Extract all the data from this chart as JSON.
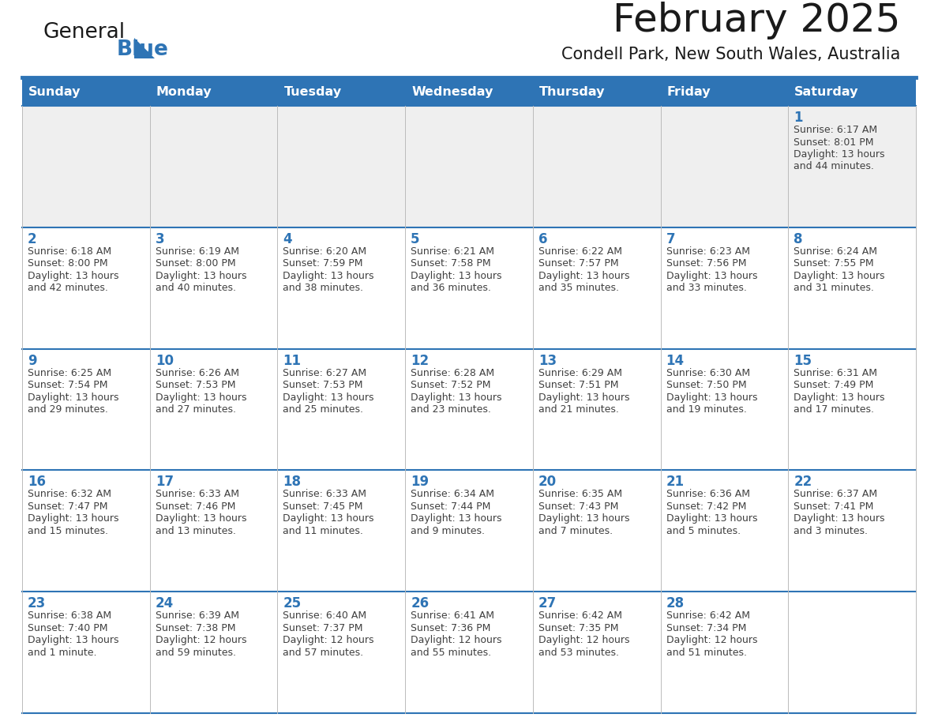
{
  "title": "February 2025",
  "subtitle": "Condell Park, New South Wales, Australia",
  "days_of_week": [
    "Sunday",
    "Monday",
    "Tuesday",
    "Wednesday",
    "Thursday",
    "Friday",
    "Saturday"
  ],
  "header_bg": "#2E74B5",
  "header_text": "#FFFFFF",
  "row_bg_week1": "#EFEFEF",
  "row_bg_other": "#FFFFFF",
  "cell_border_color": "#2E74B5",
  "day_num_color": "#2E74B5",
  "info_text_color": "#404040",
  "title_color": "#1a1a1a",
  "subtitle_color": "#1a1a1a",
  "logo_general_color": "#1a1a1a",
  "logo_blue_color": "#2E74B5",
  "logo_triangle_color": "#2E74B5",
  "separator_color": "#2E74B5",
  "calendar": [
    [
      null,
      null,
      null,
      null,
      null,
      null,
      {
        "day": 1,
        "sunrise": "6:17 AM",
        "sunset": "8:01 PM",
        "daylight_line1": "Daylight: 13 hours",
        "daylight_line2": "and 44 minutes."
      }
    ],
    [
      {
        "day": 2,
        "sunrise": "6:18 AM",
        "sunset": "8:00 PM",
        "daylight_line1": "Daylight: 13 hours",
        "daylight_line2": "and 42 minutes."
      },
      {
        "day": 3,
        "sunrise": "6:19 AM",
        "sunset": "8:00 PM",
        "daylight_line1": "Daylight: 13 hours",
        "daylight_line2": "and 40 minutes."
      },
      {
        "day": 4,
        "sunrise": "6:20 AM",
        "sunset": "7:59 PM",
        "daylight_line1": "Daylight: 13 hours",
        "daylight_line2": "and 38 minutes."
      },
      {
        "day": 5,
        "sunrise": "6:21 AM",
        "sunset": "7:58 PM",
        "daylight_line1": "Daylight: 13 hours",
        "daylight_line2": "and 36 minutes."
      },
      {
        "day": 6,
        "sunrise": "6:22 AM",
        "sunset": "7:57 PM",
        "daylight_line1": "Daylight: 13 hours",
        "daylight_line2": "and 35 minutes."
      },
      {
        "day": 7,
        "sunrise": "6:23 AM",
        "sunset": "7:56 PM",
        "daylight_line1": "Daylight: 13 hours",
        "daylight_line2": "and 33 minutes."
      },
      {
        "day": 8,
        "sunrise": "6:24 AM",
        "sunset": "7:55 PM",
        "daylight_line1": "Daylight: 13 hours",
        "daylight_line2": "and 31 minutes."
      }
    ],
    [
      {
        "day": 9,
        "sunrise": "6:25 AM",
        "sunset": "7:54 PM",
        "daylight_line1": "Daylight: 13 hours",
        "daylight_line2": "and 29 minutes."
      },
      {
        "day": 10,
        "sunrise": "6:26 AM",
        "sunset": "7:53 PM",
        "daylight_line1": "Daylight: 13 hours",
        "daylight_line2": "and 27 minutes."
      },
      {
        "day": 11,
        "sunrise": "6:27 AM",
        "sunset": "7:53 PM",
        "daylight_line1": "Daylight: 13 hours",
        "daylight_line2": "and 25 minutes."
      },
      {
        "day": 12,
        "sunrise": "6:28 AM",
        "sunset": "7:52 PM",
        "daylight_line1": "Daylight: 13 hours",
        "daylight_line2": "and 23 minutes."
      },
      {
        "day": 13,
        "sunrise": "6:29 AM",
        "sunset": "7:51 PM",
        "daylight_line1": "Daylight: 13 hours",
        "daylight_line2": "and 21 minutes."
      },
      {
        "day": 14,
        "sunrise": "6:30 AM",
        "sunset": "7:50 PM",
        "daylight_line1": "Daylight: 13 hours",
        "daylight_line2": "and 19 minutes."
      },
      {
        "day": 15,
        "sunrise": "6:31 AM",
        "sunset": "7:49 PM",
        "daylight_line1": "Daylight: 13 hours",
        "daylight_line2": "and 17 minutes."
      }
    ],
    [
      {
        "day": 16,
        "sunrise": "6:32 AM",
        "sunset": "7:47 PM",
        "daylight_line1": "Daylight: 13 hours",
        "daylight_line2": "and 15 minutes."
      },
      {
        "day": 17,
        "sunrise": "6:33 AM",
        "sunset": "7:46 PM",
        "daylight_line1": "Daylight: 13 hours",
        "daylight_line2": "and 13 minutes."
      },
      {
        "day": 18,
        "sunrise": "6:33 AM",
        "sunset": "7:45 PM",
        "daylight_line1": "Daylight: 13 hours",
        "daylight_line2": "and 11 minutes."
      },
      {
        "day": 19,
        "sunrise": "6:34 AM",
        "sunset": "7:44 PM",
        "daylight_line1": "Daylight: 13 hours",
        "daylight_line2": "and 9 minutes."
      },
      {
        "day": 20,
        "sunrise": "6:35 AM",
        "sunset": "7:43 PM",
        "daylight_line1": "Daylight: 13 hours",
        "daylight_line2": "and 7 minutes."
      },
      {
        "day": 21,
        "sunrise": "6:36 AM",
        "sunset": "7:42 PM",
        "daylight_line1": "Daylight: 13 hours",
        "daylight_line2": "and 5 minutes."
      },
      {
        "day": 22,
        "sunrise": "6:37 AM",
        "sunset": "7:41 PM",
        "daylight_line1": "Daylight: 13 hours",
        "daylight_line2": "and 3 minutes."
      }
    ],
    [
      {
        "day": 23,
        "sunrise": "6:38 AM",
        "sunset": "7:40 PM",
        "daylight_line1": "Daylight: 13 hours",
        "daylight_line2": "and 1 minute."
      },
      {
        "day": 24,
        "sunrise": "6:39 AM",
        "sunset": "7:38 PM",
        "daylight_line1": "Daylight: 12 hours",
        "daylight_line2": "and 59 minutes."
      },
      {
        "day": 25,
        "sunrise": "6:40 AM",
        "sunset": "7:37 PM",
        "daylight_line1": "Daylight: 12 hours",
        "daylight_line2": "and 57 minutes."
      },
      {
        "day": 26,
        "sunrise": "6:41 AM",
        "sunset": "7:36 PM",
        "daylight_line1": "Daylight: 12 hours",
        "daylight_line2": "and 55 minutes."
      },
      {
        "day": 27,
        "sunrise": "6:42 AM",
        "sunset": "7:35 PM",
        "daylight_line1": "Daylight: 12 hours",
        "daylight_line2": "and 53 minutes."
      },
      {
        "day": 28,
        "sunrise": "6:42 AM",
        "sunset": "7:34 PM",
        "daylight_line1": "Daylight: 12 hours",
        "daylight_line2": "and 51 minutes."
      },
      null
    ]
  ]
}
